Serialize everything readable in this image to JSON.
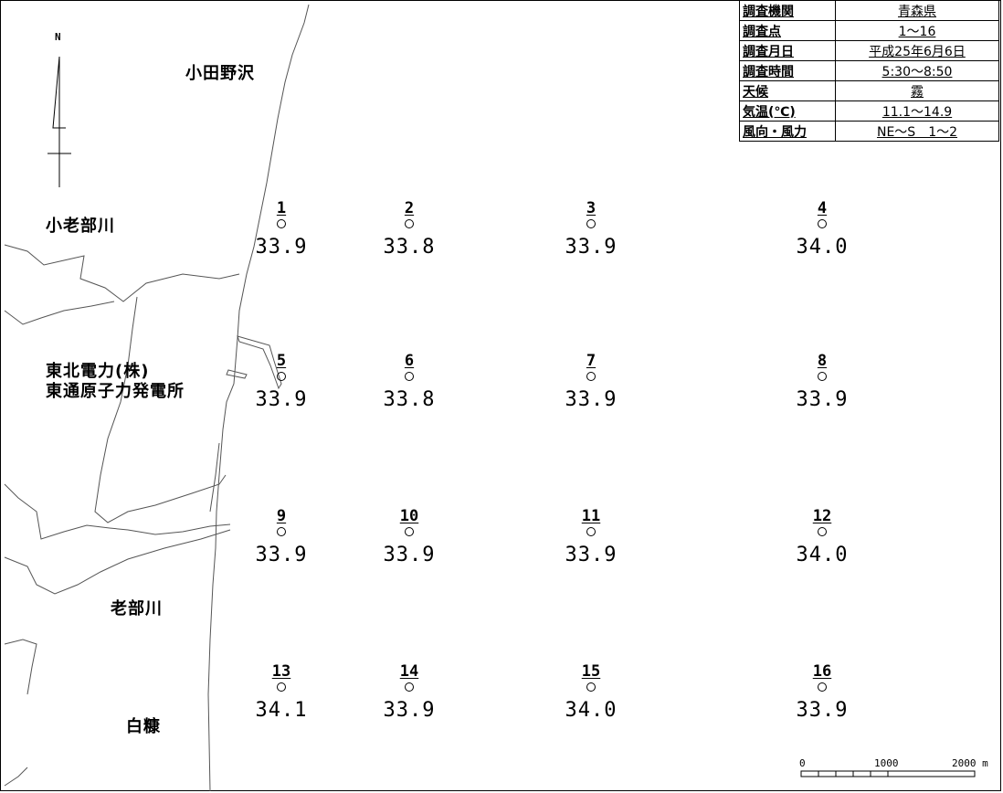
{
  "compass": {
    "north_label": "N"
  },
  "places": {
    "odanosawa": "小田野沢",
    "kooibegawa": "小老部川",
    "power_plant": "東北電力(株)\n東通原子力発電所",
    "oibegawa": "老部川",
    "shiranuka": "白糠"
  },
  "info_table": [
    {
      "label": "調査機関",
      "value": "青森県"
    },
    {
      "label": "調査点",
      "value": "1～16"
    },
    {
      "label": "調査月日",
      "value": "平成25年6月6日"
    },
    {
      "label": "調査時間",
      "value": "5:30～8:50"
    },
    {
      "label": "天候",
      "value": "霧"
    },
    {
      "label": "気温(℃)",
      "value": "11.1～14.9"
    },
    {
      "label": "風向・風力",
      "value": "NE～S　1～2"
    }
  ],
  "stations": [
    {
      "no": "1",
      "value": "33.9"
    },
    {
      "no": "5",
      "value": "33.9"
    },
    {
      "no": "9",
      "value": "33.9"
    },
    {
      "no": "13",
      "value": "34.1"
    },
    {
      "no": "2",
      "value": "33.8"
    },
    {
      "no": "6",
      "value": "33.8"
    },
    {
      "no": "10",
      "value": "33.9"
    },
    {
      "no": "14",
      "value": "33.9"
    },
    {
      "no": "3",
      "value": "33.9"
    },
    {
      "no": "7",
      "value": "33.9"
    },
    {
      "no": "11",
      "value": "33.9"
    },
    {
      "no": "15",
      "value": "34.0"
    },
    {
      "no": "4",
      "value": "34.0"
    },
    {
      "no": "8",
      "value": "33.9"
    },
    {
      "no": "12",
      "value": "34.0"
    },
    {
      "no": "16",
      "value": "33.9"
    }
  ],
  "scale_bar": {
    "labels": [
      "0",
      "1000",
      "2000 m"
    ]
  }
}
